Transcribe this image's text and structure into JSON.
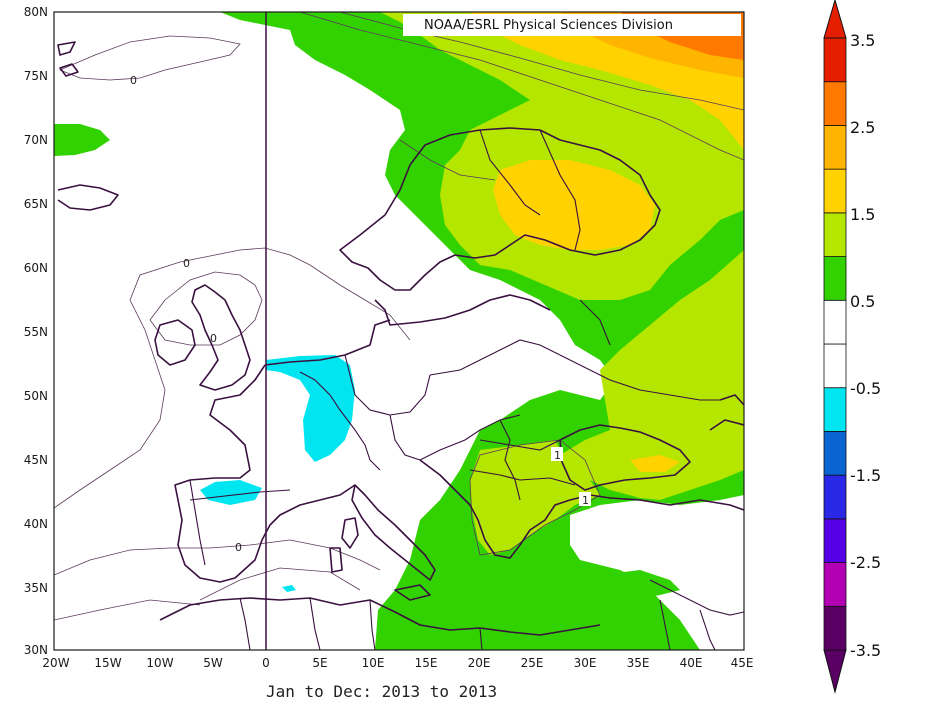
{
  "credit": "NOAA/ESRL Physical Sciences Division",
  "subtitle": "Jan to Dec: 2013 to 2013",
  "lat_ticks": [
    "80N",
    "75N",
    "70N",
    "65N",
    "60N",
    "55N",
    "50N",
    "45N",
    "40N",
    "35N",
    "30N"
  ],
  "lon_ticks": [
    "20W",
    "15W",
    "10W",
    "5W",
    "0",
    "5E",
    "10E",
    "15E",
    "20E",
    "25E",
    "30E",
    "35E",
    "40E",
    "45E"
  ],
  "contour_labels": [
    "0",
    "0",
    "0",
    "0",
    "1",
    "1"
  ],
  "colorbar": {
    "labels": [
      "3.5",
      "2.5",
      "1.5",
      "0.5",
      "-0.5",
      "-1.5",
      "-2.5",
      "-3.5"
    ],
    "colors": [
      "#5a0064",
      "#b400b4",
      "#5500e6",
      "#2828e6",
      "#0a64d2",
      "#00e6f0",
      "#ffffff",
      "#ffffff",
      "#32d200",
      "#b4e600",
      "#ffd200",
      "#ffb400",
      "#ff7800",
      "#e61e00"
    ]
  }
}
